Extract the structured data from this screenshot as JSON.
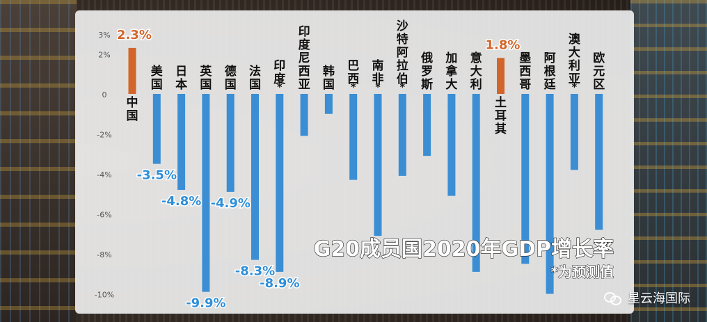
{
  "chart_data": {
    "type": "bar",
    "title": "G20成员国2020年GDP增长率",
    "subtitle": "*为预测值",
    "ylim": [
      -10,
      3
    ],
    "yticks": [
      3,
      2,
      0,
      -2,
      -4,
      -6,
      -8,
      -10
    ],
    "ytick_labels": [
      "3%",
      "2%",
      "0",
      "-2%",
      "-4%",
      "-6%",
      "-8%",
      "-10%"
    ],
    "categories": [
      "中国",
      "美国",
      "日本",
      "英国",
      "德国",
      "法国",
      "印度*",
      "印度尼西亚",
      "韩国",
      "巴西*",
      "南非*",
      "沙特阿拉伯*",
      "俄罗斯",
      "加拿大",
      "意大利",
      "土耳其",
      "墨西哥",
      "阿根廷",
      "澳大利亚*",
      "欧元区"
    ],
    "values": [
      2.3,
      -3.5,
      -4.8,
      -9.9,
      -4.9,
      -8.3,
      -8.9,
      -2.1,
      -1.0,
      -4.3,
      -7.1,
      -4.1,
      -3.1,
      -5.1,
      -8.9,
      1.8,
      -8.5,
      -10.0,
      -3.8,
      -6.8
    ],
    "data_labels": {
      "0": "2.3%",
      "1": "-3.5%",
      "2": "-4.8%",
      "3": "-9.9%",
      "4": "-4.9%",
      "5": "-8.3%",
      "6": "-8.9%",
      "15": "1.8%"
    },
    "colors": {
      "positive": "#d2662a",
      "negative": "#3b8ed3",
      "axis_text": "#555555",
      "label_blue": "#2f8fd9"
    }
  },
  "watermark": {
    "text": "星云海国际",
    "icon": "wechat-icon"
  }
}
